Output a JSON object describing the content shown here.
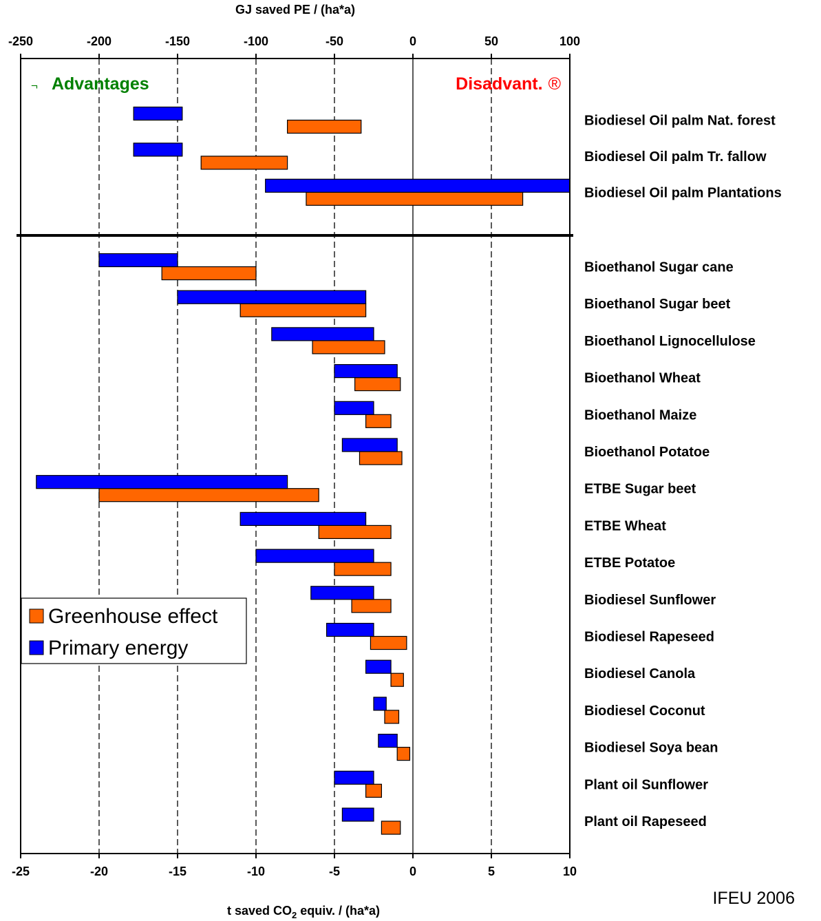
{
  "chart_data": {
    "type": "bar",
    "subtype": "floating-range-horizontal",
    "top_axis": {
      "title": "GJ saved PE / (ha*a)",
      "range": [
        -250,
        100
      ],
      "ticks": [
        "-250",
        "-200",
        "-150",
        "-100",
        "-50",
        "0",
        "50",
        "100"
      ]
    },
    "bottom_axis": {
      "title_prefix": "t  saved CO",
      "title_sub": "2",
      "title_suffix": " equiv. / (ha*a)",
      "range": [
        -25,
        10
      ],
      "ticks": [
        "-25",
        "-20",
        "-15",
        "-10",
        "-5",
        "0",
        "5",
        "10"
      ]
    },
    "grid": "vertical dashed at -200, -150, -100, -50, 50; solid at 0",
    "annotations": {
      "left_arrow": "¬",
      "left": "Advantages",
      "left_color": "#008000",
      "right": "Disadvant.",
      "right_arrow": "®",
      "right_color": "#ff0000"
    },
    "legend": {
      "position": "left-middle",
      "items": [
        {
          "label": "Greenhouse effect",
          "color": "#ff6600"
        },
        {
          "label": "Primary energy",
          "color": "#0000ff"
        }
      ]
    },
    "series": [
      {
        "name": "Primary energy",
        "axis": "top",
        "color": "#0000ff"
      },
      {
        "name": "Greenhouse effect",
        "axis": "bottom",
        "color": "#ff6600"
      }
    ],
    "groups": [
      {
        "categories": [
          {
            "label": "Biodiesel Oil palm Nat. forest",
            "pe": [
              -178,
              -147
            ],
            "ghg": [
              -8,
              -3.3
            ]
          },
          {
            "label": "Biodiesel Oil palm Tr. fallow",
            "pe": [
              -178,
              -147
            ],
            "ghg": [
              -13.5,
              -8
            ]
          },
          {
            "label": "Biodiesel Oil palm Plantations",
            "pe": [
              -94,
              100
            ],
            "ghg": [
              -6.8,
              7
            ]
          }
        ]
      },
      {
        "categories": [
          {
            "label": "Bioethanol Sugar cane",
            "pe": [
              -200,
              -150
            ],
            "ghg": [
              -16,
              -10
            ]
          },
          {
            "label": "Bioethanol Sugar beet",
            "pe": [
              -150,
              -30
            ],
            "ghg": [
              -11,
              -3
            ]
          },
          {
            "label": "Bioethanol Lignocellulose",
            "pe": [
              -90,
              -25
            ],
            "ghg": [
              -6.4,
              -1.8
            ]
          },
          {
            "label": "Bioethanol Wheat",
            "pe": [
              -50,
              -10
            ],
            "ghg": [
              -3.7,
              -0.8
            ]
          },
          {
            "label": "Bioethanol Maize",
            "pe": [
              -50,
              -25
            ],
            "ghg": [
              -3,
              -1.4
            ]
          },
          {
            "label": "Bioethanol Potatoe",
            "pe": [
              -45,
              -10
            ],
            "ghg": [
              -3.4,
              -0.7
            ]
          },
          {
            "label": "ETBE Sugar beet",
            "pe": [
              -240,
              -80
            ],
            "ghg": [
              -20,
              -6
            ]
          },
          {
            "label": "ETBE Wheat",
            "pe": [
              -110,
              -30
            ],
            "ghg": [
              -6,
              -1.4
            ]
          },
          {
            "label": "ETBE Potatoe",
            "pe": [
              -100,
              -25
            ],
            "ghg": [
              -5,
              -1.4
            ]
          },
          {
            "label": "Biodiesel Sunflower",
            "pe": [
              -65,
              -25
            ],
            "ghg": [
              -3.9,
              -1.4
            ]
          },
          {
            "label": "Biodiesel Rapeseed",
            "pe": [
              -55,
              -25
            ],
            "ghg": [
              -2.7,
              -0.4
            ]
          },
          {
            "label": "Biodiesel Canola",
            "pe": [
              -30,
              -14
            ],
            "ghg": [
              -1.4,
              -0.6
            ]
          },
          {
            "label": "Biodiesel Coconut",
            "pe": [
              -25,
              -17
            ],
            "ghg": [
              -1.8,
              -0.9
            ]
          },
          {
            "label": "Biodiesel Soya bean",
            "pe": [
              -22,
              -10
            ],
            "ghg": [
              -1,
              -0.2
            ]
          },
          {
            "label": "Plant oil Sunflower",
            "pe": [
              -50,
              -25
            ],
            "ghg": [
              -3,
              -2
            ]
          },
          {
            "label": "Plant oil Rapeseed",
            "pe": [
              -45,
              -25
            ],
            "ghg": [
              -2,
              -0.8
            ]
          }
        ]
      }
    ]
  },
  "credit": "IFEU 2006"
}
